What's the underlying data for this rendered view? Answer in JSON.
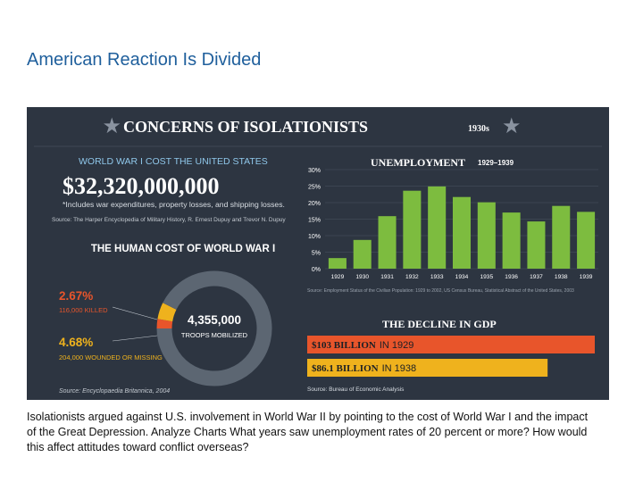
{
  "slide_title": "American Reaction Is Divided",
  "caption": "Isolationists argued against U.S. involvement in World War II by pointing to the cost of World War I and the impact of the Great Depression. Analyze Charts What years saw unemployment rates of 20 percent or more? How would this affect attitudes toward conflict overseas?",
  "infographic": {
    "title": "CONCERNS OF ISOLATIONISTS",
    "title_badge": "1930s",
    "colors": {
      "background": "#2d3541",
      "green": "#7dbc3f",
      "orange": "#e8552b",
      "yellow": "#efb21d",
      "ring_gray": "#5c6672",
      "light_blue": "#8fc7ea"
    },
    "wwi_cost": {
      "heading": "WORLD WAR I COST THE UNITED STATES",
      "amount": "$32,320,000,000",
      "note": "*Includes war expenditures, property losses, and shipping losses.",
      "source": "Source: The Harper Encyclopedia of Military History, R. Ernest Dupuy and Trevor N. Dupuy"
    },
    "human_cost": {
      "heading": "THE HUMAN COST OF WORLD WAR I",
      "killed_pct": "2.67%",
      "killed_label": "116,000 KILLED",
      "wounded_pct": "4.68%",
      "wounded_label": "204,000 WOUNDED OR MISSING",
      "troops_total": "4,355,000",
      "troops_label": "TROOPS MOBILIZED",
      "source": "Source: Encyclopaedia Britannica, 2004"
    },
    "gdp": {
      "heading": "THE DECLINE IN GDP",
      "bars": [
        {
          "amount": "$103 BILLION",
          "year_text": "IN 1929",
          "value": 103
        },
        {
          "amount": "$86.1 BILLION",
          "year_text": "IN 1938",
          "value": 86.1
        }
      ],
      "source": "Source: Bureau of Economic Analysis"
    }
  },
  "chart_data": [
    {
      "type": "bar",
      "title": "UNEMPLOYMENT",
      "subtitle": "1929–1939",
      "categories": [
        "1929",
        "1930",
        "1931",
        "1932",
        "1933",
        "1934",
        "1935",
        "1936",
        "1937",
        "1938",
        "1939"
      ],
      "values": [
        3.2,
        8.7,
        15.9,
        23.6,
        24.9,
        21.7,
        20.1,
        17.0,
        14.3,
        19.0,
        17.2
      ],
      "yticks": [
        "0%",
        "5%",
        "10%",
        "15%",
        "20%",
        "25%",
        "30%"
      ],
      "ylim": [
        0,
        30
      ],
      "xlabel": "",
      "ylabel": "",
      "source": "Source: Employment Status of the Civilian Population: 1929 to 2002, US Census Bureau, Statistical Abstract of the United States, 2003"
    },
    {
      "type": "pie",
      "title": "THE HUMAN COST OF WORLD WAR I",
      "labels": [
        "Killed",
        "Wounded or missing",
        "Other troops mobilized"
      ],
      "values": [
        2.67,
        4.68,
        92.65
      ]
    }
  ]
}
